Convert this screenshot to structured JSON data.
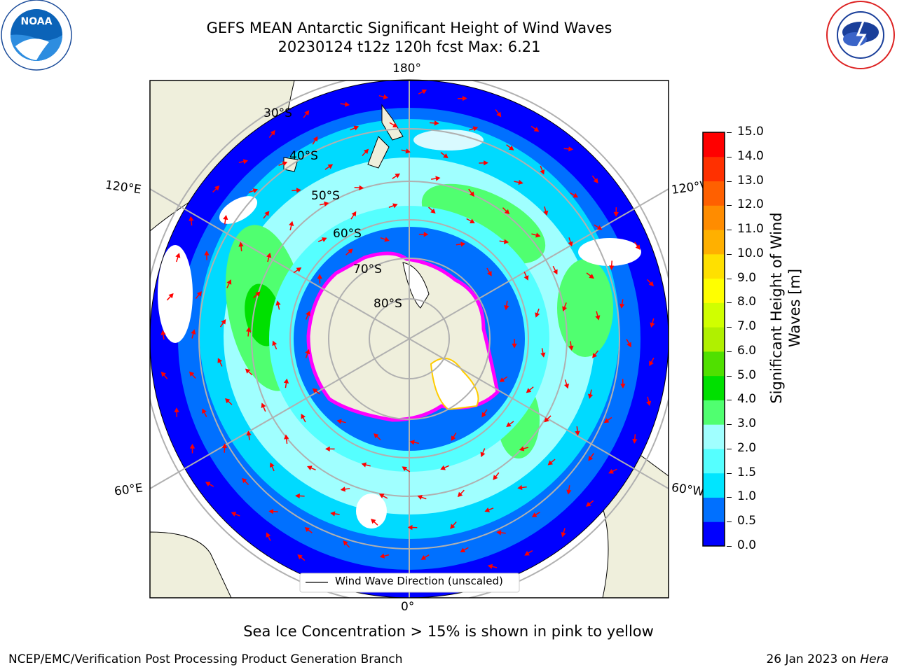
{
  "title": {
    "line1": "GEFS MEAN Antarctic Significant Height of Wind Waves",
    "line2": "20230124 t12z 120h fcst   Max: 6.21"
  },
  "logos": {
    "left_label": "NOAA",
    "right_label": "NATIONAL WEATHER SERVICE"
  },
  "map": {
    "longitude_labels": {
      "top": "180°",
      "bottom": "0°",
      "upper_left": "120°E",
      "upper_right": "120°W",
      "lower_left": "60°E",
      "lower_right": "60°W"
    },
    "latitude_labels": [
      "30°S",
      "40°S",
      "50°S",
      "60°S",
      "70°S",
      "80°S"
    ],
    "legend_label": "Wind Wave Direction (unscaled)",
    "colors": {
      "land": "#efefdc",
      "ice_free_white": "#ffffff",
      "sea_ice_edge": "#ff00ff",
      "arrow": "#ff0000",
      "grid": "#b0b0b0"
    }
  },
  "colorbar": {
    "label": "Significant Height of Wind Waves [m]",
    "label_line1": "Significant Height of Wind",
    "label_line2": "Waves [m]",
    "ticks": [
      "0.0",
      "0.5",
      "1.0",
      "1.5",
      "2.0",
      "3.0",
      "4.0",
      "5.0",
      "6.0",
      "7.0",
      "8.0",
      "9.0",
      "10.0",
      "11.0",
      "12.0",
      "13.0",
      "14.0",
      "15.0"
    ],
    "colors": [
      "#0000ff",
      "#0070ff",
      "#00e5ff",
      "#55ffff",
      "#a0ffff",
      "#50ff70",
      "#00e000",
      "#50e000",
      "#b0f000",
      "#d0ff00",
      "#ffff00",
      "#ffe000",
      "#ffb000",
      "#ff8c00",
      "#ff6000",
      "#ff3000",
      "#ff0000"
    ]
  },
  "footer": {
    "sea_ice_note": "Sea Ice Concentration > 15% is shown in pink to yellow",
    "left": "NCEP/EMC/Verification Post Processing Product Generation Branch",
    "right_date": "26 Jan 2023 on ",
    "right_host": "Hera"
  }
}
